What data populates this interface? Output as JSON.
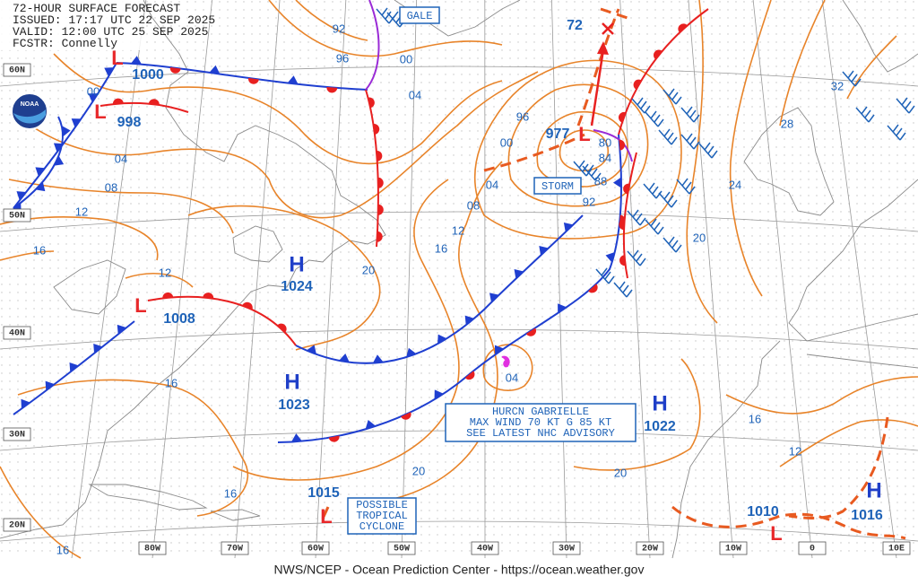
{
  "header": {
    "title": "72-HOUR SURFACE FORECAST",
    "issued": "ISSUED: 17:17 UTC 22 SEP 2025",
    "valid": "VALID:  12:00 UTC 25 SEP 2025",
    "forecaster": "FCSTR:  Connelly"
  },
  "logo": "NOAA",
  "footer": "NWS/NCEP - Ocean Prediction Center - https://ocean.weather.gov",
  "latitude_labels": [
    "60N",
    "50N",
    "40N",
    "30N",
    "20N"
  ],
  "longitude_labels": [
    "80W",
    "70W",
    "60W",
    "50W",
    "40W",
    "30W",
    "20W",
    "10W",
    "0",
    "10E"
  ],
  "centers": [
    {
      "symbol": "L",
      "pressure": 1000
    },
    {
      "symbol": "L",
      "pressure": 998
    },
    {
      "symbol": "H",
      "pressure": 1024
    },
    {
      "symbol": "L",
      "pressure": 1008
    },
    {
      "symbol": "H",
      "pressure": 1023
    },
    {
      "symbol": "L",
      "pressure": 977
    },
    {
      "symbol": "H",
      "pressure": 1022
    },
    {
      "symbol": "L",
      "pressure": 1015
    },
    {
      "symbol": "L",
      "pressure": 1010
    },
    {
      "symbol": "H",
      "pressure": 1016
    }
  ],
  "track_label": "72",
  "isobar_labels": [
    "92",
    "96",
    "00",
    "04",
    "00",
    "04",
    "08",
    "12",
    "16",
    "12",
    "16",
    "20",
    "16",
    "12",
    "08",
    "04",
    "00",
    "96",
    "80",
    "84",
    "88",
    "92",
    "04",
    "20",
    "16",
    "16",
    "20",
    "16",
    "12",
    "20",
    "24",
    "28",
    "32"
  ],
  "wind_boxes": [
    "GALE",
    "STORM"
  ],
  "hurricane_advisory": [
    "HURCN GABRIELLE",
    "MAX WIND 70 KT G 85 KT",
    "SEE LATEST NHC ADVISORY"
  ],
  "tropical_note": [
    "POSSIBLE",
    "TROPICAL",
    "CYCLONE"
  ]
}
